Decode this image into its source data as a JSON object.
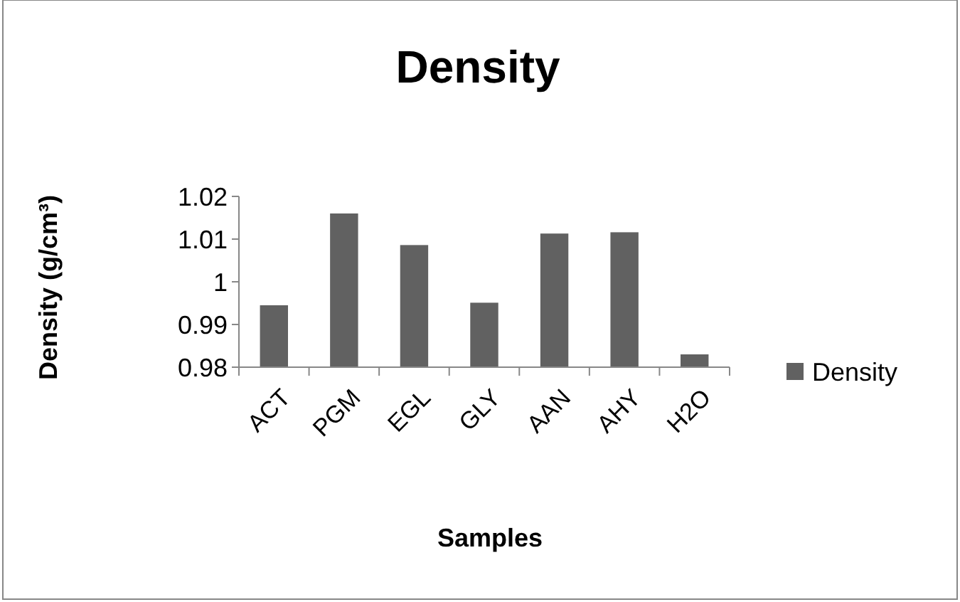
{
  "chart_data": {
    "type": "bar",
    "title": "Density",
    "xlabel": "Samples",
    "ylabel": "Density (g/cm³)",
    "categories": [
      "ACT",
      "PGM",
      "EGL",
      "GLY",
      "AAN",
      "AHY",
      "H2O"
    ],
    "series": [
      {
        "name": "Density",
        "color": "#616161",
        "values": [
          0.9945,
          1.016,
          1.0086,
          0.9951,
          1.0113,
          1.0116,
          0.983
        ]
      }
    ],
    "ylim": [
      0.98,
      1.02
    ],
    "yticks": [
      0.98,
      0.99,
      1,
      1.01,
      1.02
    ],
    "grid": false,
    "legend": "right"
  }
}
